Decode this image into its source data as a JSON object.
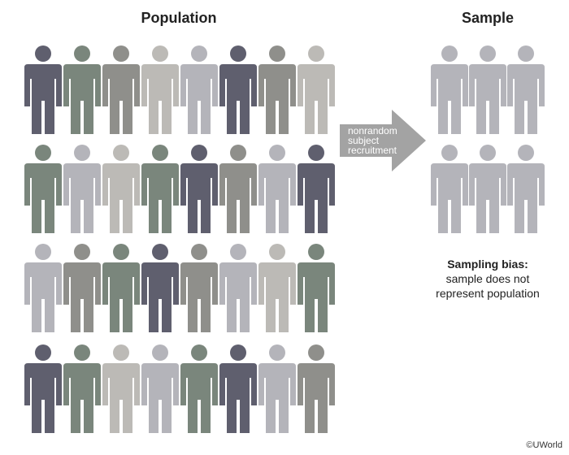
{
  "population": {
    "title": "Population",
    "figure_colors": [
      [
        "#5f5f6e",
        "#7a867c",
        "#8f8f8b",
        "#bcbab6",
        "#b4b4ba",
        "#5f5f6e",
        "#8f8f8b",
        "#bcbab6"
      ],
      [
        "#7a867c",
        "#b4b4ba",
        "#bcbab6",
        "#7a867c",
        "#5f5f6e",
        "#8f8f8b",
        "#b4b4ba",
        "#5f5f6e"
      ],
      [
        "#b4b4ba",
        "#8f8f8b",
        "#7a867c",
        "#5f5f6e",
        "#8f8f8b",
        "#b4b4ba",
        "#bcbab6",
        "#7a867c"
      ],
      [
        "#5f5f6e",
        "#7a867c",
        "#bcbab6",
        "#b4b4ba",
        "#7a867c",
        "#5f5f6e",
        "#b4b4ba",
        "#8f8f8b"
      ]
    ]
  },
  "arrow": {
    "lines": [
      "nonrandom",
      "subject",
      "recruitment"
    ],
    "color": "#a3a3a3"
  },
  "sample": {
    "title": "Sample",
    "figure_color": "#b4b4ba",
    "rows": 2,
    "cols": 3
  },
  "caption": {
    "title": "Sampling bias:",
    "body_line1": "sample does not",
    "body_line2": "represent population"
  },
  "copyright": "©UWorld"
}
